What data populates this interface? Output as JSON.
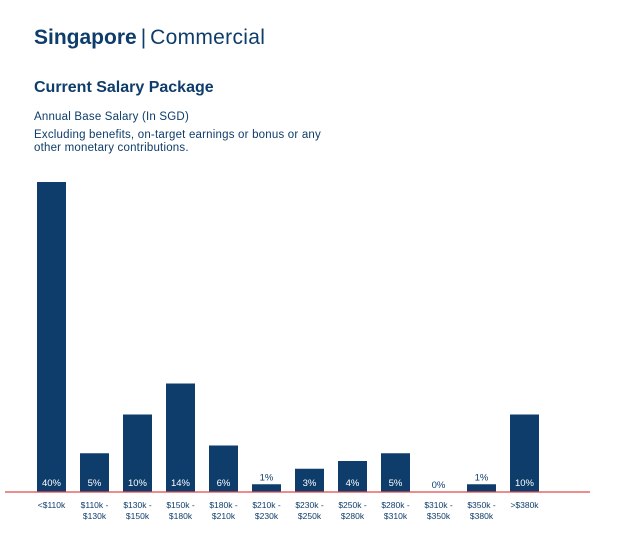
{
  "header": {
    "region": "Singapore",
    "separator": "|",
    "segment": "Commercial"
  },
  "chart_data": {
    "type": "bar",
    "title": "Current Salary Package",
    "subtitle": "Annual Base Salary (In SGD)",
    "note": "Excluding benefits, on-target earnings or bonus or any other monetary contributions.",
    "categories": [
      "<$110k",
      "$110k - $130k",
      "$130k - $150k",
      "$150k - $180k",
      "$180k - $210k",
      "$210k - $230k",
      "$230k - $250k",
      "$250k - $280k",
      "$280k - $310k",
      "$310k - $350k",
      "$350k - $380k",
      ">$380k"
    ],
    "tick_labels": [
      [
        "<$110k"
      ],
      [
        "$110k -",
        "$130k"
      ],
      [
        "$130k -",
        "$150k"
      ],
      [
        "$150k -",
        "$180k"
      ],
      [
        "$180k -",
        "$210k"
      ],
      [
        "$210k -",
        "$230k"
      ],
      [
        "$230k -",
        "$250k"
      ],
      [
        "$250k -",
        "$280k"
      ],
      [
        "$280k -",
        "$310k"
      ],
      [
        "$310k -",
        "$350k"
      ],
      [
        "$350k -",
        "$380k"
      ],
      [
        ">$380k"
      ]
    ],
    "values": [
      40,
      5,
      10,
      14,
      6,
      1,
      3,
      4,
      5,
      0,
      1,
      10
    ],
    "data_labels": [
      "40%",
      "5%",
      "10%",
      "14%",
      "6%",
      "1%",
      "3%",
      "4%",
      "5%",
      "0%",
      "1%",
      "10%"
    ],
    "ylim": [
      0,
      40
    ],
    "grid": false,
    "colors": {
      "bar": "#0e3d6b",
      "baseline": "#e0474c",
      "text": "#0e3d6b",
      "label_inside": "#ffffff"
    }
  }
}
